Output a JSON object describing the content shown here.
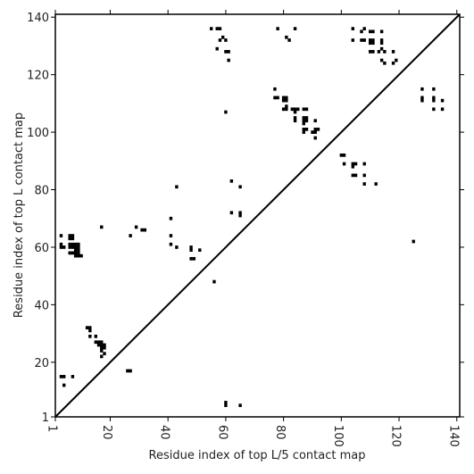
{
  "chart_data": {
    "type": "scatter",
    "xlabel": "Residue index of top L/5 contact map",
    "ylabel": "Residue index of top L contact map",
    "xlim": [
      1,
      141
    ],
    "ylim": [
      1,
      141
    ],
    "x_ticks": [
      1,
      20,
      40,
      60,
      80,
      100,
      120,
      140
    ],
    "y_ticks": [
      1,
      20,
      40,
      60,
      80,
      100,
      120,
      140
    ],
    "diagonal_line": true,
    "marker": "square",
    "marker_color": "#000000",
    "series": [
      {
        "points": [
          [
            55,
            136
          ],
          [
            57,
            136
          ],
          [
            58,
            136
          ],
          [
            58,
            132
          ],
          [
            59,
            133
          ],
          [
            60,
            132
          ],
          [
            60,
            128
          ],
          [
            61,
            128
          ],
          [
            57,
            129
          ],
          [
            61,
            125
          ],
          [
            78,
            136
          ],
          [
            81,
            133
          ],
          [
            82,
            132
          ],
          [
            84,
            136
          ],
          [
            104,
            136
          ],
          [
            104,
            132
          ],
          [
            107,
            135
          ],
          [
            108,
            136
          ],
          [
            107,
            132
          ],
          [
            108,
            132
          ],
          [
            110,
            135
          ],
          [
            111,
            135
          ],
          [
            110,
            132
          ],
          [
            111,
            132
          ],
          [
            110,
            131
          ],
          [
            111,
            131
          ],
          [
            110,
            128
          ],
          [
            111,
            128
          ],
          [
            114,
            135
          ],
          [
            114,
            132
          ],
          [
            114,
            131
          ],
          [
            113,
            128
          ],
          [
            114,
            129
          ],
          [
            115,
            128
          ],
          [
            114,
            125
          ],
          [
            115,
            124
          ],
          [
            118,
            128
          ],
          [
            118,
            124
          ],
          [
            119,
            125
          ],
          [
            128,
            115
          ],
          [
            128,
            112
          ],
          [
            128,
            111
          ],
          [
            132,
            115
          ],
          [
            132,
            112
          ],
          [
            132,
            111
          ],
          [
            132,
            108
          ],
          [
            135,
            111
          ],
          [
            135,
            108
          ],
          [
            60,
            107
          ],
          [
            77,
            115
          ],
          [
            77,
            112
          ],
          [
            78,
            112
          ],
          [
            80,
            112
          ],
          [
            80,
            111
          ],
          [
            81,
            112
          ],
          [
            81,
            111
          ],
          [
            80,
            108
          ],
          [
            81,
            108
          ],
          [
            81,
            109
          ],
          [
            83,
            108
          ],
          [
            84,
            108
          ],
          [
            84,
            107
          ],
          [
            85,
            108
          ],
          [
            84,
            105
          ],
          [
            84,
            104
          ],
          [
            87,
            108
          ],
          [
            88,
            108
          ],
          [
            87,
            105
          ],
          [
            88,
            105
          ],
          [
            87,
            104
          ],
          [
            88,
            104
          ],
          [
            87,
            103
          ],
          [
            87,
            101
          ],
          [
            88,
            101
          ],
          [
            87,
            100
          ],
          [
            91,
            104
          ],
          [
            91,
            101
          ],
          [
            92,
            101
          ],
          [
            91,
            100
          ],
          [
            90,
            100
          ],
          [
            91,
            98
          ],
          [
            100,
            92
          ],
          [
            101,
            92
          ],
          [
            101,
            89
          ],
          [
            104,
            89
          ],
          [
            105,
            89
          ],
          [
            104,
            88
          ],
          [
            108,
            89
          ],
          [
            104,
            85
          ],
          [
            105,
            85
          ],
          [
            108,
            85
          ],
          [
            108,
            82
          ],
          [
            112,
            82
          ],
          [
            62,
            83
          ],
          [
            65,
            81
          ],
          [
            43,
            81
          ],
          [
            62,
            72
          ],
          [
            65,
            72
          ],
          [
            65,
            71
          ],
          [
            41,
            70
          ],
          [
            17,
            67
          ],
          [
            29,
            67
          ],
          [
            31,
            66
          ],
          [
            32,
            66
          ],
          [
            27,
            64
          ],
          [
            41,
            64
          ],
          [
            3,
            64
          ],
          [
            6,
            64
          ],
          [
            7,
            64
          ],
          [
            6,
            63
          ],
          [
            7,
            63
          ],
          [
            3,
            61
          ],
          [
            6,
            61
          ],
          [
            7,
            61
          ],
          [
            8,
            61
          ],
          [
            9,
            61
          ],
          [
            6,
            60
          ],
          [
            7,
            60
          ],
          [
            8,
            60
          ],
          [
            9,
            60
          ],
          [
            3,
            60
          ],
          [
            4,
            60
          ],
          [
            8,
            59
          ],
          [
            9,
            59
          ],
          [
            6,
            58
          ],
          [
            7,
            58
          ],
          [
            8,
            58
          ],
          [
            9,
            58
          ],
          [
            10,
            57
          ],
          [
            8,
            57
          ],
          [
            9,
            57
          ],
          [
            41,
            61
          ],
          [
            43,
            60
          ],
          [
            48,
            60
          ],
          [
            48,
            59
          ],
          [
            51,
            59
          ],
          [
            48,
            56
          ],
          [
            49,
            56
          ],
          [
            56,
            48
          ],
          [
            12,
            32
          ],
          [
            13,
            32
          ],
          [
            13,
            31
          ],
          [
            13,
            29
          ],
          [
            15,
            29
          ],
          [
            15,
            27
          ],
          [
            16,
            27
          ],
          [
            17,
            27
          ],
          [
            16,
            26
          ],
          [
            17,
            26
          ],
          [
            18,
            26
          ],
          [
            17,
            25
          ],
          [
            18,
            25
          ],
          [
            17,
            24
          ],
          [
            18,
            23
          ],
          [
            17,
            22
          ],
          [
            26,
            17
          ],
          [
            27,
            17
          ],
          [
            3,
            15
          ],
          [
            4,
            15
          ],
          [
            7,
            15
          ],
          [
            4,
            12
          ],
          [
            60,
            6
          ],
          [
            60,
            5
          ],
          [
            65,
            5
          ],
          [
            125,
            62
          ]
        ]
      }
    ]
  }
}
